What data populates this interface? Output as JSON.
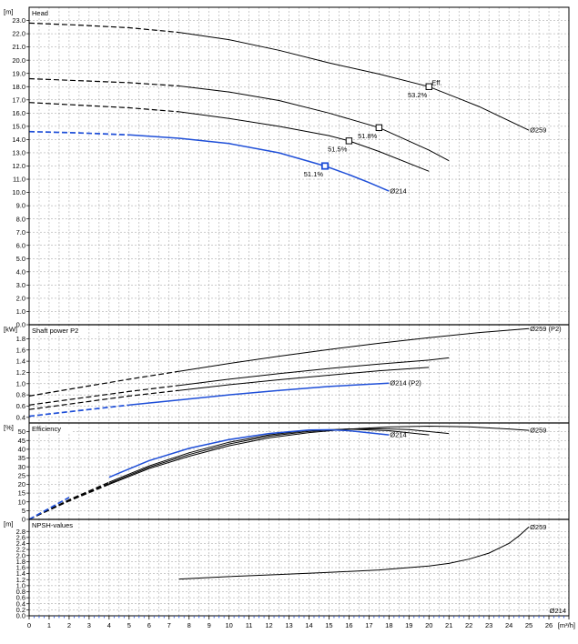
{
  "chart_data": [
    {
      "type": "line",
      "panel_title": "Head",
      "unit": "[m]",
      "ylim": [
        0,
        24
      ],
      "y_ticks": [
        "0.0",
        "1.0",
        "2.0",
        "3.0",
        "4.0",
        "5.0",
        "6.0",
        "7.0",
        "8.0",
        "9.0",
        "10.0",
        "11.0",
        "12.0",
        "13.0",
        "14.0",
        "15.0",
        "16.0",
        "17.0",
        "18.0",
        "19.0",
        "20.0",
        "21.0",
        "22.0",
        "23.0"
      ],
      "grid": true,
      "series": [
        {
          "name": "Ø259",
          "color": "#000000",
          "dashed_until": 7.5,
          "x": [
            0,
            2.5,
            5,
            7.5,
            10,
            12.5,
            15,
            17.5,
            20,
            22.5,
            25
          ],
          "y": [
            22.8,
            22.65,
            22.45,
            22.1,
            21.55,
            20.75,
            19.8,
            18.95,
            18.0,
            16.5,
            14.7
          ],
          "label": "Ø259",
          "label_x": 25.0,
          "label_y": 14.7
        },
        {
          "name": "",
          "color": "#000000",
          "dashed_until": 7.5,
          "x": [
            0,
            2.5,
            5,
            7.5,
            10,
            12.5,
            15,
            17.5,
            20,
            21
          ],
          "y": [
            18.6,
            18.45,
            18.3,
            18.05,
            17.6,
            16.95,
            16.0,
            14.9,
            13.2,
            12.4
          ]
        },
        {
          "name": "",
          "color": "#000000",
          "dashed_until": 7.5,
          "x": [
            0,
            2.5,
            5,
            7.5,
            10,
            12.5,
            15,
            16,
            17.5,
            20
          ],
          "y": [
            16.8,
            16.6,
            16.4,
            16.1,
            15.6,
            15.0,
            14.3,
            13.9,
            13.1,
            11.6
          ]
        },
        {
          "name": "Ø214",
          "color": "#1f4fd8",
          "dashed_until": 5,
          "x": [
            0,
            2.5,
            5,
            7.5,
            10,
            12.5,
            14.8,
            16,
            17,
            18
          ],
          "y": [
            14.6,
            14.5,
            14.35,
            14.1,
            13.7,
            13.0,
            12.0,
            11.35,
            10.75,
            10.1
          ],
          "label": "Ø214",
          "label_x": 18.0,
          "label_y": 10.1
        }
      ],
      "markers": [
        {
          "x": 20.0,
          "y": 18.0,
          "label": "53.2%",
          "extra": "Eff.",
          "color": "#000000"
        },
        {
          "x": 17.5,
          "y": 14.9,
          "label": "51.8%",
          "color": "#000000"
        },
        {
          "x": 16.0,
          "y": 13.9,
          "label": "51.5%",
          "color": "#000000"
        },
        {
          "x": 14.8,
          "y": 12.0,
          "label": "51.1%",
          "color": "#1f4fd8"
        }
      ]
    },
    {
      "type": "line",
      "panel_title": "Shaft power P2",
      "unit": "[kW]",
      "ylim": [
        0.3,
        2.05
      ],
      "y_ticks": [
        "0.4",
        "0.6",
        "0.8",
        "1.0",
        "1.2",
        "1.4",
        "1.6",
        "1.8"
      ],
      "grid": true,
      "series": [
        {
          "name": "Ø259 (P2)",
          "color": "#000000",
          "dashed_until": 7.5,
          "x": [
            0,
            2.5,
            5,
            7.5,
            10,
            12.5,
            15,
            17.5,
            20,
            22.5,
            25
          ],
          "y": [
            0.78,
            0.93,
            1.08,
            1.22,
            1.36,
            1.49,
            1.61,
            1.72,
            1.82,
            1.91,
            1.98
          ],
          "label": "Ø259 (P2)",
          "label_x": 25.0,
          "label_y": 1.98
        },
        {
          "name": "",
          "color": "#000000",
          "dashed_until": 7.5,
          "x": [
            0,
            2.5,
            5,
            7.5,
            10,
            12.5,
            15,
            17.5,
            20,
            21
          ],
          "y": [
            0.62,
            0.74,
            0.86,
            0.97,
            1.08,
            1.18,
            1.27,
            1.35,
            1.42,
            1.46
          ]
        },
        {
          "name": "",
          "color": "#000000",
          "dashed_until": 7.5,
          "x": [
            0,
            2.5,
            5,
            7.5,
            10,
            12.5,
            15,
            17.5,
            20
          ],
          "y": [
            0.54,
            0.66,
            0.78,
            0.88,
            0.98,
            1.07,
            1.15,
            1.23,
            1.29
          ]
        },
        {
          "name": "Ø214 (P2)",
          "color": "#1f4fd8",
          "dashed_until": 5,
          "x": [
            0,
            2.5,
            5,
            7.5,
            10,
            12.5,
            15,
            18
          ],
          "y": [
            0.42,
            0.52,
            0.62,
            0.71,
            0.8,
            0.88,
            0.95,
            1.01
          ],
          "label": "Ø214 (P2)",
          "label_x": 18.0,
          "label_y": 1.01
        }
      ]
    },
    {
      "type": "line",
      "panel_title": "Efficiency",
      "unit": "[%]",
      "ylim": [
        0,
        55
      ],
      "y_ticks": [
        "0",
        "5",
        "10",
        "15",
        "20",
        "25",
        "30",
        "35",
        "40",
        "45",
        "50"
      ],
      "grid": true,
      "series": [
        {
          "name": "Ø259",
          "color": "#000000",
          "dashed_until": 4,
          "x": [
            0,
            2,
            4,
            6,
            8,
            10,
            12,
            14,
            16,
            18,
            20,
            22,
            24,
            25
          ],
          "y": [
            0,
            10.5,
            20,
            29,
            36,
            42,
            46.5,
            49.5,
            51.5,
            52.7,
            53.2,
            52.8,
            51.6,
            50.8
          ],
          "label": "Ø259",
          "label_x": 25.0,
          "label_y": 50.8
        },
        {
          "name": "",
          "color": "#000000",
          "dashed_until": 4,
          "x": [
            0,
            2,
            4,
            6,
            8,
            10,
            12,
            14,
            16,
            17.5,
            19,
            21
          ],
          "y": [
            0,
            10.8,
            20.5,
            29.8,
            37,
            43,
            47.5,
            50.2,
            51.6,
            51.8,
            51.2,
            49.0
          ]
        },
        {
          "name": "",
          "color": "#000000",
          "dashed_until": 4,
          "x": [
            0,
            2,
            4,
            6,
            8,
            10,
            12,
            14,
            16,
            18,
            20
          ],
          "y": [
            0,
            11.2,
            21.2,
            30.5,
            38,
            44,
            48.2,
            50.8,
            51.5,
            50.6,
            48.2
          ]
        },
        {
          "name": "Ø214",
          "color": "#1f4fd8",
          "dashed_until": 3.5,
          "x": [
            0,
            2,
            4,
            6,
            8,
            10,
            12,
            14,
            15,
            16,
            18
          ],
          "y": [
            0,
            12.5,
            24,
            33.5,
            40.5,
            45.5,
            49,
            51,
            51.1,
            50.6,
            48.2
          ],
          "label": "Ø214",
          "label_x": 18.0,
          "label_y": 48.2
        }
      ]
    },
    {
      "type": "line",
      "panel_title": "NPSH-values",
      "unit": "[m]",
      "ylim": [
        0,
        3.2
      ],
      "y_ticks": [
        "0.0",
        "0.2",
        "0.4",
        "0.6",
        "0.8",
        "1.0",
        "1.2",
        "1.4",
        "1.6",
        "1.8",
        "2.0",
        "2.2",
        "2.4",
        "2.6",
        "2.8"
      ],
      "grid": true,
      "series": [
        {
          "name": "Ø259",
          "color": "#000000",
          "dashed_until": 0,
          "x": [
            7.5,
            10,
            12.5,
            15,
            17.5,
            20,
            21,
            22,
            23,
            24,
            24.5,
            25
          ],
          "y": [
            1.22,
            1.3,
            1.37,
            1.44,
            1.52,
            1.65,
            1.74,
            1.88,
            2.08,
            2.4,
            2.65,
            2.95
          ],
          "label": "Ø259",
          "label_x": 25.0,
          "label_y": 2.95
        }
      ],
      "extra_label": {
        "text": "Ø214",
        "color": "#1f4fd8"
      }
    }
  ],
  "x_axis": {
    "unit": "[m³/h]",
    "min": 0,
    "max": 27,
    "ticks": [
      "0",
      "1",
      "2",
      "3",
      "4",
      "5",
      "6",
      "7",
      "8",
      "9",
      "10",
      "11",
      "12",
      "13",
      "14",
      "15",
      "16",
      "17",
      "18",
      "19",
      "20",
      "21",
      "22",
      "23",
      "24",
      "25",
      "26"
    ]
  }
}
